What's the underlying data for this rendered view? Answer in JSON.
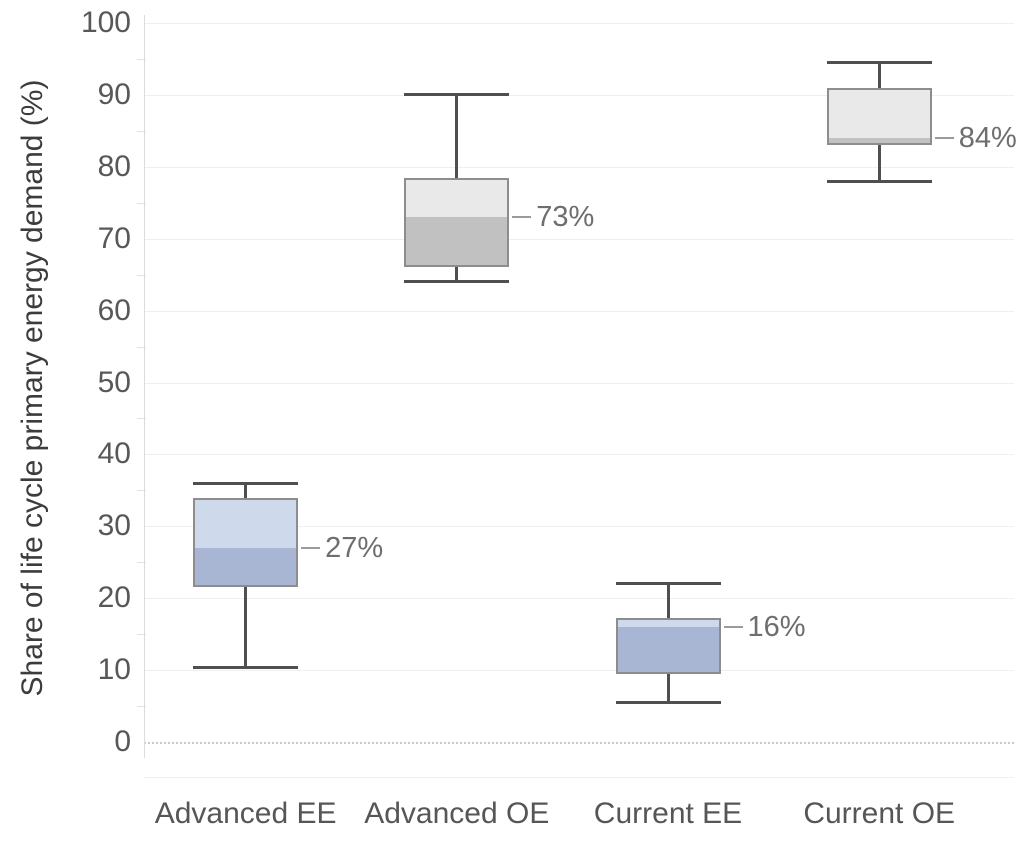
{
  "chart_data": {
    "type": "boxplot",
    "title": "",
    "xlabel": "",
    "ylabel": "Share of life cycle primary energy demand (%)",
    "ylim": [
      0,
      100
    ],
    "yticks": [
      0,
      10,
      20,
      30,
      40,
      50,
      60,
      70,
      80,
      90,
      100
    ],
    "minor_ticks": [
      5,
      15,
      25,
      35,
      45,
      55,
      65,
      75,
      85,
      95
    ],
    "grid": "horizontal major gridlines light gray; zero line dotted; no legend",
    "categories": [
      "Advanced EE",
      "Advanced OE",
      "Current EE",
      "Current OE"
    ],
    "series": [
      {
        "category": "Advanced EE",
        "whisker_low": 10.3,
        "q1": 21.5,
        "median": 27,
        "q3": 34,
        "whisker_high": 36,
        "median_label": "27%",
        "fill_upper": "#ced9eb",
        "fill_lower": "#a8b5d3"
      },
      {
        "category": "Advanced OE",
        "whisker_low": 64,
        "q1": 66,
        "median": 73,
        "q3": 78.5,
        "whisker_high": 90,
        "median_label": "73%",
        "fill_upper": "#e9e9e9",
        "fill_lower": "#c1c1c1"
      },
      {
        "category": "Current EE",
        "whisker_low": 5.5,
        "q1": 9.5,
        "median": 16,
        "q3": 17.3,
        "whisker_high": 22,
        "median_label": "16%",
        "fill_upper": "#ced9eb",
        "fill_lower": "#a8b5d3"
      },
      {
        "category": "Current OE",
        "whisker_low": 78,
        "q1": 83,
        "median": 84,
        "q3": 91,
        "whisker_high": 94.5,
        "median_label": "84%",
        "fill_upper": "#e9e9e9",
        "fill_lower": "#c1c1c1"
      }
    ],
    "colors": {
      "ee_box_upper": "#ced9eb",
      "ee_box_lower": "#a8b5d3",
      "oe_box_upper": "#e9e9e9",
      "oe_box_lower": "#c1c1c1",
      "whisker": "#4f4f4f",
      "box_border": "#8d8d8d",
      "gridline": "#efefef",
      "tick_label": "#585858",
      "axis_title": "#3c3c3c",
      "median_label": "#6e6e6e"
    }
  }
}
